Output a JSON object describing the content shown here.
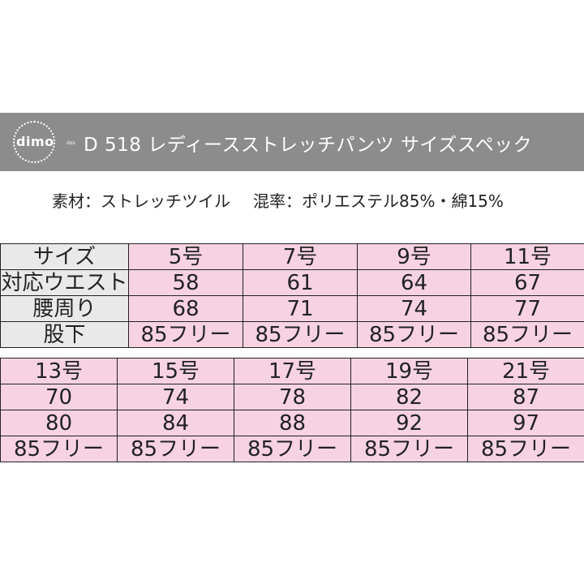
{
  "banner": {
    "logo_text": "dimo",
    "logo_sub": "dos",
    "title": "D 518 レディースストレッチパンツ サイズスペック"
  },
  "material": {
    "fabric": "素材：ストレッチツイル",
    "blend": "混率：ポリエステル85%・綿15%"
  },
  "table1": {
    "row_labels": [
      "サイズ",
      "対応ウエスト",
      "腰周り",
      "股下"
    ],
    "columns": [
      {
        "size": "5号",
        "waist": "58",
        "hip": "68",
        "inseam": "85フリー"
      },
      {
        "size": "7号",
        "waist": "61",
        "hip": "71",
        "inseam": "85フリー"
      },
      {
        "size": "9号",
        "waist": "64",
        "hip": "74",
        "inseam": "85フリー"
      },
      {
        "size": "11号",
        "waist": "67",
        "hip": "77",
        "inseam": "85フリー"
      }
    ]
  },
  "table2": {
    "columns": [
      {
        "size": "13号",
        "waist": "70",
        "hip": "80",
        "inseam": "85フリー"
      },
      {
        "size": "15号",
        "waist": "74",
        "hip": "84",
        "inseam": "85フリー"
      },
      {
        "size": "17号",
        "waist": "78",
        "hip": "88",
        "inseam": "85フリー"
      },
      {
        "size": "19号",
        "waist": "82",
        "hip": "92",
        "inseam": "85フリー"
      },
      {
        "size": "21号",
        "waist": "87",
        "hip": "97",
        "inseam": "85フリー"
      }
    ]
  },
  "colors": {
    "banner": "#8c8c8c",
    "header_cell": "#e9e9e9",
    "value_cell": "#f7d2e3"
  }
}
